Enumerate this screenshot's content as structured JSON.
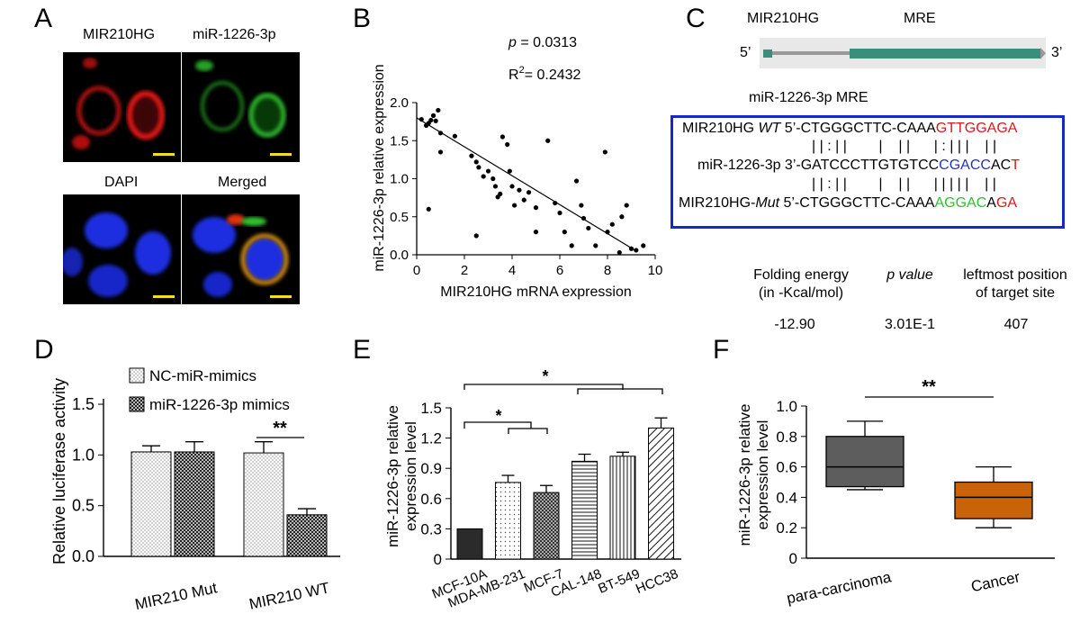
{
  "panel_labels": [
    "A",
    "B",
    "C",
    "D",
    "E",
    "F"
  ],
  "panelA": {
    "labels": {
      "top_left": "MIR210HG",
      "top_right": "miR-1226-3p",
      "bottom_left": "DAPI",
      "bottom_right": "Merged"
    },
    "image_description": "confocal fluorescence micrographs"
  },
  "panelC": {
    "gene_label": "MIR210HG",
    "mre_label": "MRE",
    "five_prime": "5’",
    "three_prime": "3’",
    "subtitle": "miR-1226-3p MRE",
    "alignment": {
      "wt": {
        "name": "MIR210HG ",
        "italic": "WT",
        "seq_black": " 5’-CTGGGCTTC-CAAA",
        "seq_red": "GTTGGA",
        "seq_black2": "GA"
      },
      "pairs1": "| | : | |        |    | |      | : | | |    | |",
      "mir": {
        "name": "miR-1226-3p",
        "seq_black": " 3’-GATCCCTTGTGTCC",
        "seq_blue": "CGACC",
        "seq_black2": "AC",
        "seq_red": "T"
      },
      "pairs2": "| | : | |        |    | |      | | | | |    | |",
      "mut": {
        "name": "MIR210HG-",
        "italic": "Mut",
        "seq_black": " 5’-CTGGGCTTC-CAAA",
        "seq_green": "AGGAC",
        "seq_black2": "A",
        "seq_red": "GA"
      }
    },
    "table": {
      "headers": [
        [
          "Folding energy",
          "(in -Kcal/mol)"
        ],
        [
          "p value"
        ],
        [
          "leftmost position",
          "of target site"
        ]
      ],
      "values": [
        "-12.90",
        "3.01E-1",
        "407"
      ]
    }
  },
  "colors": {
    "red": "#e0151b",
    "blue": "#2233c0",
    "green": "#2fbf2f",
    "teal": "#3a8f7c",
    "box_border": "#1429c8",
    "para_box": "#5d5d5d",
    "cancer_box": "#c8630a",
    "e_bar1": "#2b2b2b"
  },
  "chart_data": [
    {
      "panel": "B",
      "type": "scatter",
      "xlabel": "MIR210HG mRNA expression",
      "ylabel": "miR-1226-3p relative expression",
      "annotation_p": {
        "prefix": "p",
        "text": " = 0.0313"
      },
      "annotation_r2": {
        "prefix": "R",
        "sup": "2",
        "text": "= 0.2432"
      },
      "xlim": [
        0,
        10
      ],
      "ylim": [
        0,
        2.0
      ],
      "x_ticks": [
        "0",
        "2",
        "4",
        "6",
        "8",
        "10"
      ],
      "y_ticks": [
        "0.0",
        "0.5",
        "1.0",
        "1.5",
        "2.0"
      ],
      "fit_line": [
        [
          0,
          1.8
        ],
        [
          9.2,
          0.05
        ]
      ],
      "points": [
        [
          0.2,
          1.78
        ],
        [
          0.4,
          1.7
        ],
        [
          0.5,
          1.73
        ],
        [
          0.6,
          1.77
        ],
        [
          0.7,
          1.83
        ],
        [
          0.9,
          1.9
        ],
        [
          0.8,
          1.76
        ],
        [
          1.0,
          1.6
        ],
        [
          0.5,
          0.6
        ],
        [
          1.0,
          1.35
        ],
        [
          1.6,
          1.56
        ],
        [
          2.3,
          1.3
        ],
        [
          2.5,
          1.22
        ],
        [
          2.6,
          1.15
        ],
        [
          2.5,
          0.25
        ],
        [
          2.8,
          1.03
        ],
        [
          3.0,
          1.1
        ],
        [
          3.2,
          1.0
        ],
        [
          3.3,
          0.9
        ],
        [
          3.5,
          0.8
        ],
        [
          3.4,
          0.76
        ],
        [
          3.6,
          1.55
        ],
        [
          3.8,
          1.45
        ],
        [
          3.9,
          1.1
        ],
        [
          4.0,
          0.9
        ],
        [
          4.1,
          0.65
        ],
        [
          4.3,
          0.85
        ],
        [
          4.5,
          0.72
        ],
        [
          4.7,
          0.82
        ],
        [
          5.0,
          0.62
        ],
        [
          5.0,
          0.3
        ],
        [
          5.5,
          1.5
        ],
        [
          5.8,
          0.68
        ],
        [
          6.0,
          0.55
        ],
        [
          6.2,
          0.3
        ],
        [
          6.5,
          0.12
        ],
        [
          6.7,
          0.97
        ],
        [
          6.9,
          0.65
        ],
        [
          7.0,
          0.48
        ],
        [
          7.2,
          0.35
        ],
        [
          7.5,
          0.12
        ],
        [
          7.9,
          1.35
        ],
        [
          8.0,
          0.3
        ],
        [
          8.2,
          0.4
        ],
        [
          8.5,
          0.03
        ],
        [
          8.6,
          0.5
        ],
        [
          8.8,
          0.65
        ],
        [
          9.0,
          0.08
        ],
        [
          9.2,
          0.06
        ],
        [
          9.5,
          0.12
        ]
      ]
    },
    {
      "panel": "D",
      "type": "bar",
      "ylabel": "Relative luciferase activity",
      "categories": [
        "MIR210 Mut",
        "MIR210 WT"
      ],
      "ylim": [
        0,
        1.5
      ],
      "y_ticks": [
        "0.0",
        "0.5",
        "1.0",
        "1.5"
      ],
      "series": [
        {
          "name": "NC-miR-mimics",
          "values": [
            1.03,
            1.02
          ],
          "errors": [
            0.06,
            0.11
          ]
        },
        {
          "name": "miR-1226-3p mimics",
          "values": [
            1.03,
            0.41
          ],
          "errors": [
            0.1,
            0.06
          ]
        }
      ],
      "significance": "**"
    },
    {
      "panel": "E",
      "type": "bar",
      "ylabel_line1": "miR-1226-3p relative",
      "ylabel_line2": "expression level",
      "categories": [
        "MCF-10A",
        "MDA-MB-231",
        "MCF-7",
        "CAL-148",
        "BT-549",
        "HCC38"
      ],
      "values": [
        0.3,
        0.76,
        0.66,
        0.97,
        1.02,
        1.3
      ],
      "errors": [
        0.0,
        0.07,
        0.07,
        0.07,
        0.04,
        0.1
      ],
      "ylim": [
        0,
        1.5
      ],
      "y_ticks": [
        "0",
        "0.3",
        "0.6",
        "0.9",
        "1.2",
        "1.5"
      ],
      "significance": [
        "*",
        "*"
      ]
    },
    {
      "panel": "F",
      "type": "box",
      "ylabel_line1": "miR-1226-3p relative",
      "ylabel_line2": "expression level",
      "categories": [
        "para-carcinoma",
        "Cancer"
      ],
      "boxes": [
        {
          "min": 0.45,
          "q1": 0.47,
          "median": 0.6,
          "q3": 0.8,
          "max": 0.9
        },
        {
          "min": 0.2,
          "q1": 0.26,
          "median": 0.4,
          "q3": 0.5,
          "max": 0.6
        }
      ],
      "ylim": [
        0,
        1.0
      ],
      "y_ticks": [
        "0",
        "0.2",
        "0.4",
        "0.6",
        "0.8",
        "1.0"
      ],
      "significance": "**"
    }
  ]
}
